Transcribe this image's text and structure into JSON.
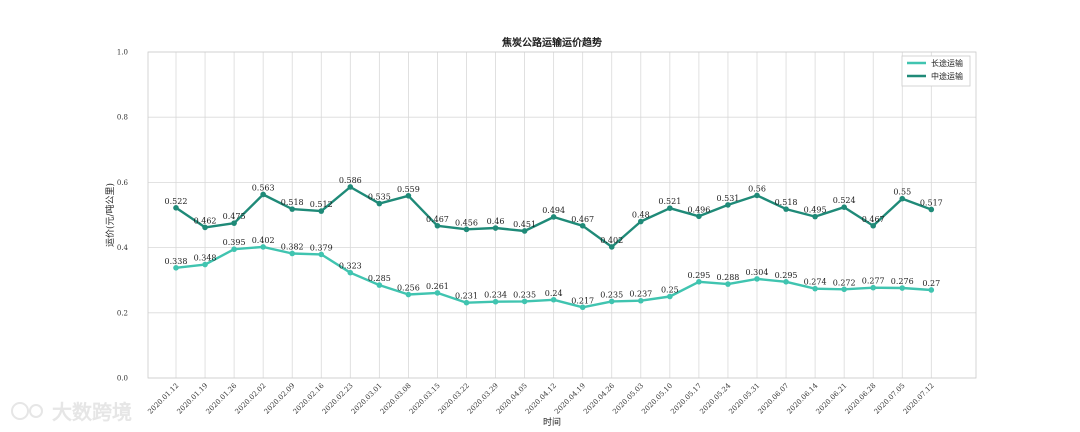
{
  "chart_data": {
    "type": "line",
    "title": "焦炭公路运输运价趋势",
    "xlabel": "时间",
    "ylabel": "运价(元/吨公里)",
    "ylim": [
      0.0,
      1.0
    ],
    "y_ticks": [
      "0.0",
      "0.2",
      "0.4",
      "0.6",
      "0.8",
      "1.0"
    ],
    "grid": true,
    "legend_position": "top-right",
    "categories": [
      "2020.01.12",
      "2020.01.19",
      "2020.01.26",
      "2020.02.02",
      "2020.02.09",
      "2020.02.16",
      "2020.02.23",
      "2020.03.01",
      "2020.03.08",
      "2020.03.15",
      "2020.03.22",
      "2020.03.29",
      "2020.04.05",
      "2020.04.12",
      "2020.04.19",
      "2020.04.26",
      "2020.05.03",
      "2020.05.10",
      "2020.05.17",
      "2020.05.24",
      "2020.05.31",
      "2020.06.07",
      "2020.06.14",
      "2020.06.21",
      "2020.06.28",
      "2020.07.05",
      "2020.07.12"
    ],
    "series": [
      {
        "name": "长途运输",
        "color": "#40c4b0",
        "values": [
          0.338,
          0.348,
          0.395,
          0.402,
          0.382,
          0.379,
          0.323,
          0.285,
          0.256,
          0.261,
          0.231,
          0.234,
          0.235,
          0.24,
          0.217,
          0.235,
          0.237,
          0.25,
          0.295,
          0.288,
          0.304,
          0.295,
          0.274,
          0.272,
          0.277,
          0.276,
          0.27
        ]
      },
      {
        "name": "中途运输",
        "color": "#1f8a78",
        "values": [
          0.522,
          0.462,
          0.475,
          0.563,
          0.518,
          0.512,
          0.586,
          0.535,
          0.559,
          0.467,
          0.456,
          0.46,
          0.451,
          0.494,
          0.467,
          0.402,
          0.48,
          0.521,
          0.496,
          0.531,
          0.56,
          0.518,
          0.495,
          0.524,
          0.467,
          0.55,
          0.517
        ]
      }
    ]
  },
  "watermark": "大数跨境"
}
